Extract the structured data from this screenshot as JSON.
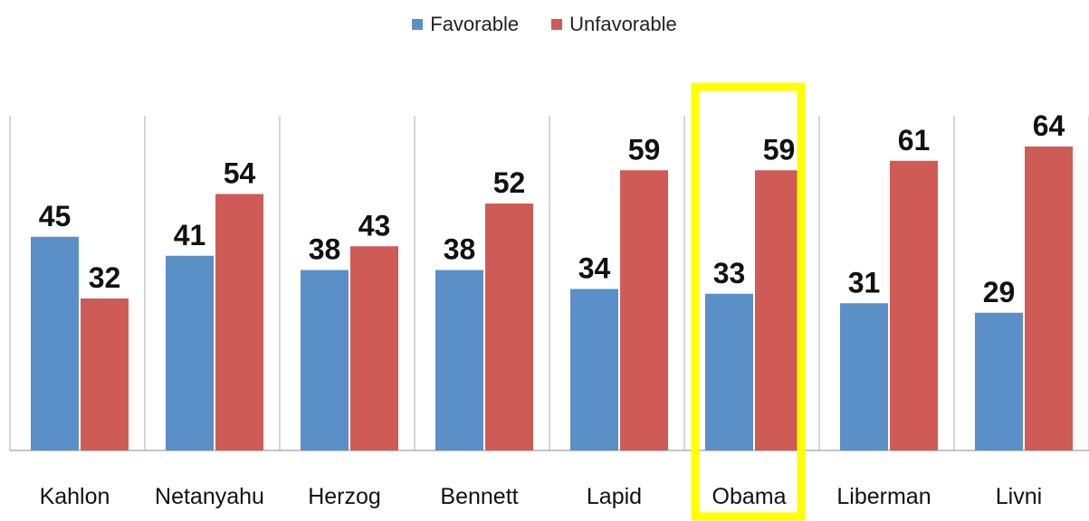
{
  "legend": {
    "favorable": "Favorable",
    "unfavorable": "Unfavorable"
  },
  "colors": {
    "favorable": "#5b8fc8",
    "unfavorable": "#cf5b57",
    "highlight": "#ffff00",
    "grid": "#c8c8c8"
  },
  "chart_data": {
    "type": "bar",
    "title": "",
    "xlabel": "",
    "ylabel": "",
    "ylim": [
      0,
      70
    ],
    "grid": false,
    "legend_position": "top-center",
    "highlighted_category": "Obama",
    "categories": [
      "Kahlon",
      "Netanyahu",
      "Herzog",
      "Bennett",
      "Lapid",
      "Obama",
      "Liberman",
      "Livni"
    ],
    "series": [
      {
        "name": "Favorable",
        "color": "#5b8fc8",
        "values": [
          45,
          41,
          38,
          38,
          34,
          33,
          31,
          29
        ]
      },
      {
        "name": "Unfavorable",
        "color": "#cf5b57",
        "values": [
          32,
          54,
          43,
          52,
          59,
          59,
          61,
          64
        ]
      }
    ]
  }
}
